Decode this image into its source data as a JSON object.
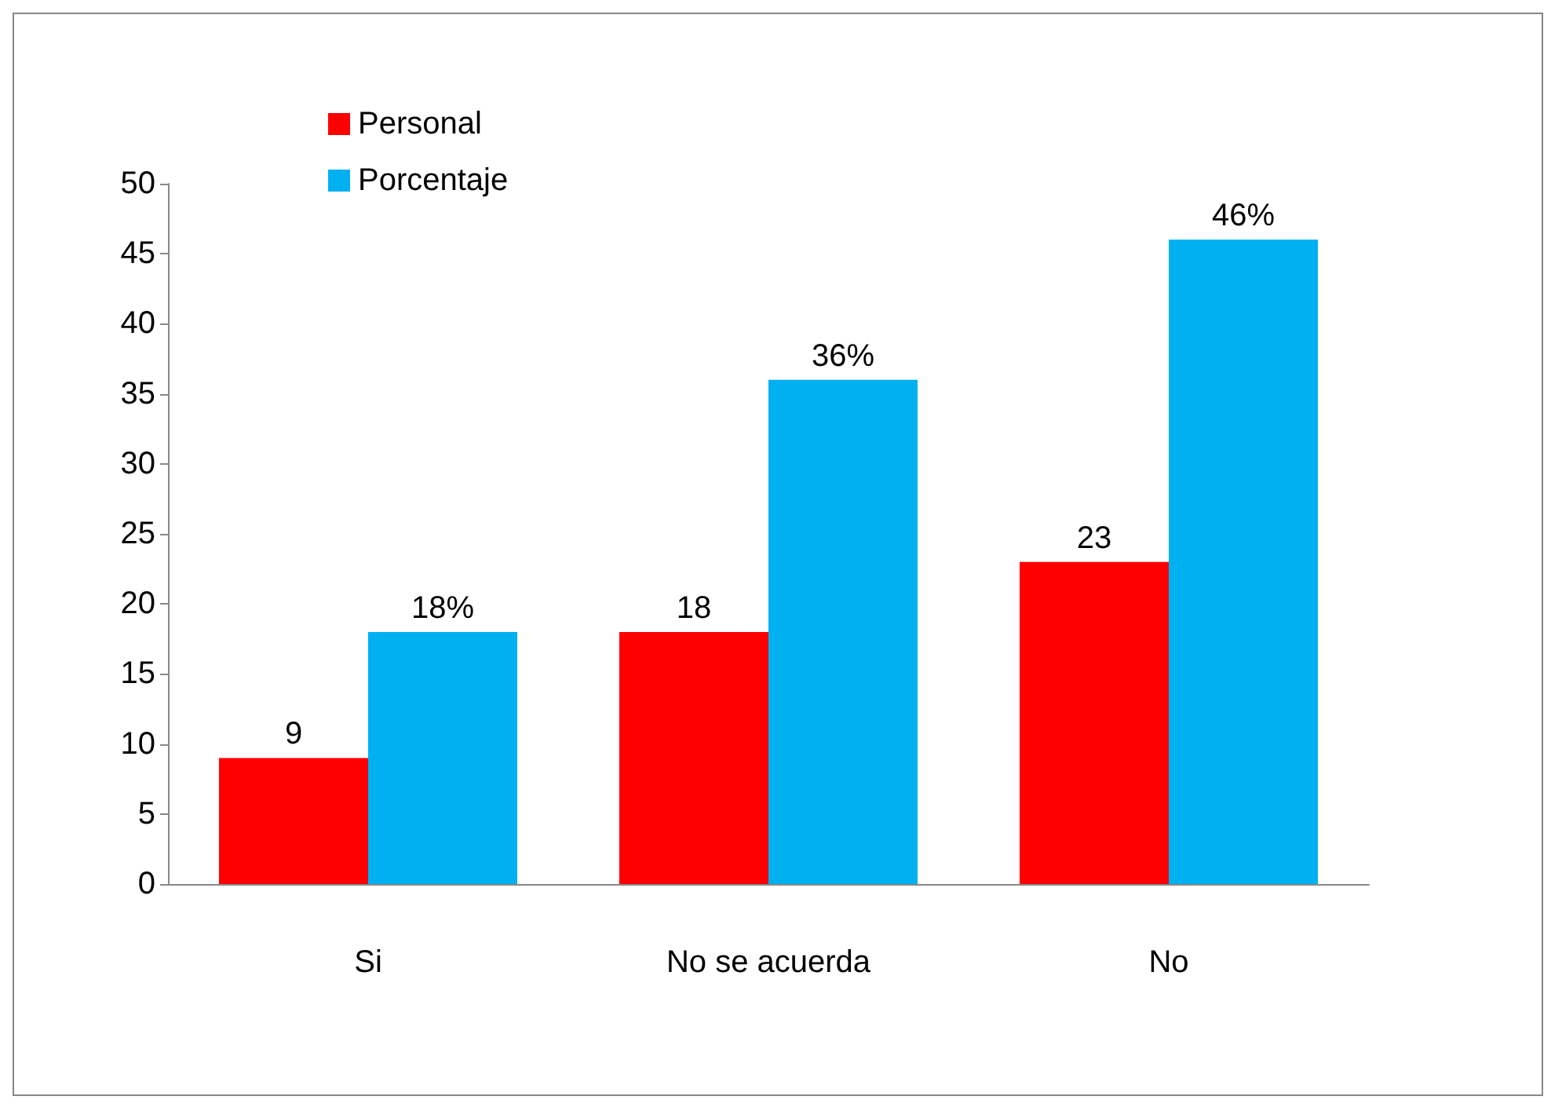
{
  "chart_data": {
    "type": "bar",
    "categories": [
      "Si",
      "No se acuerda",
      "No"
    ],
    "series": [
      {
        "name": "Personal",
        "color": "#ff0000",
        "values": [
          9,
          18,
          23
        ],
        "value_labels": [
          "9",
          "18",
          "23"
        ]
      },
      {
        "name": "Porcentaje",
        "color": "#00b0f0",
        "values": [
          18,
          36,
          46
        ],
        "value_labels": [
          "18%",
          "36%",
          "46%"
        ]
      }
    ],
    "ylim": [
      0,
      50
    ],
    "yticks": [
      0,
      5,
      10,
      15,
      20,
      25,
      30,
      35,
      40,
      45,
      50
    ],
    "grid": false,
    "legend": "top left"
  }
}
